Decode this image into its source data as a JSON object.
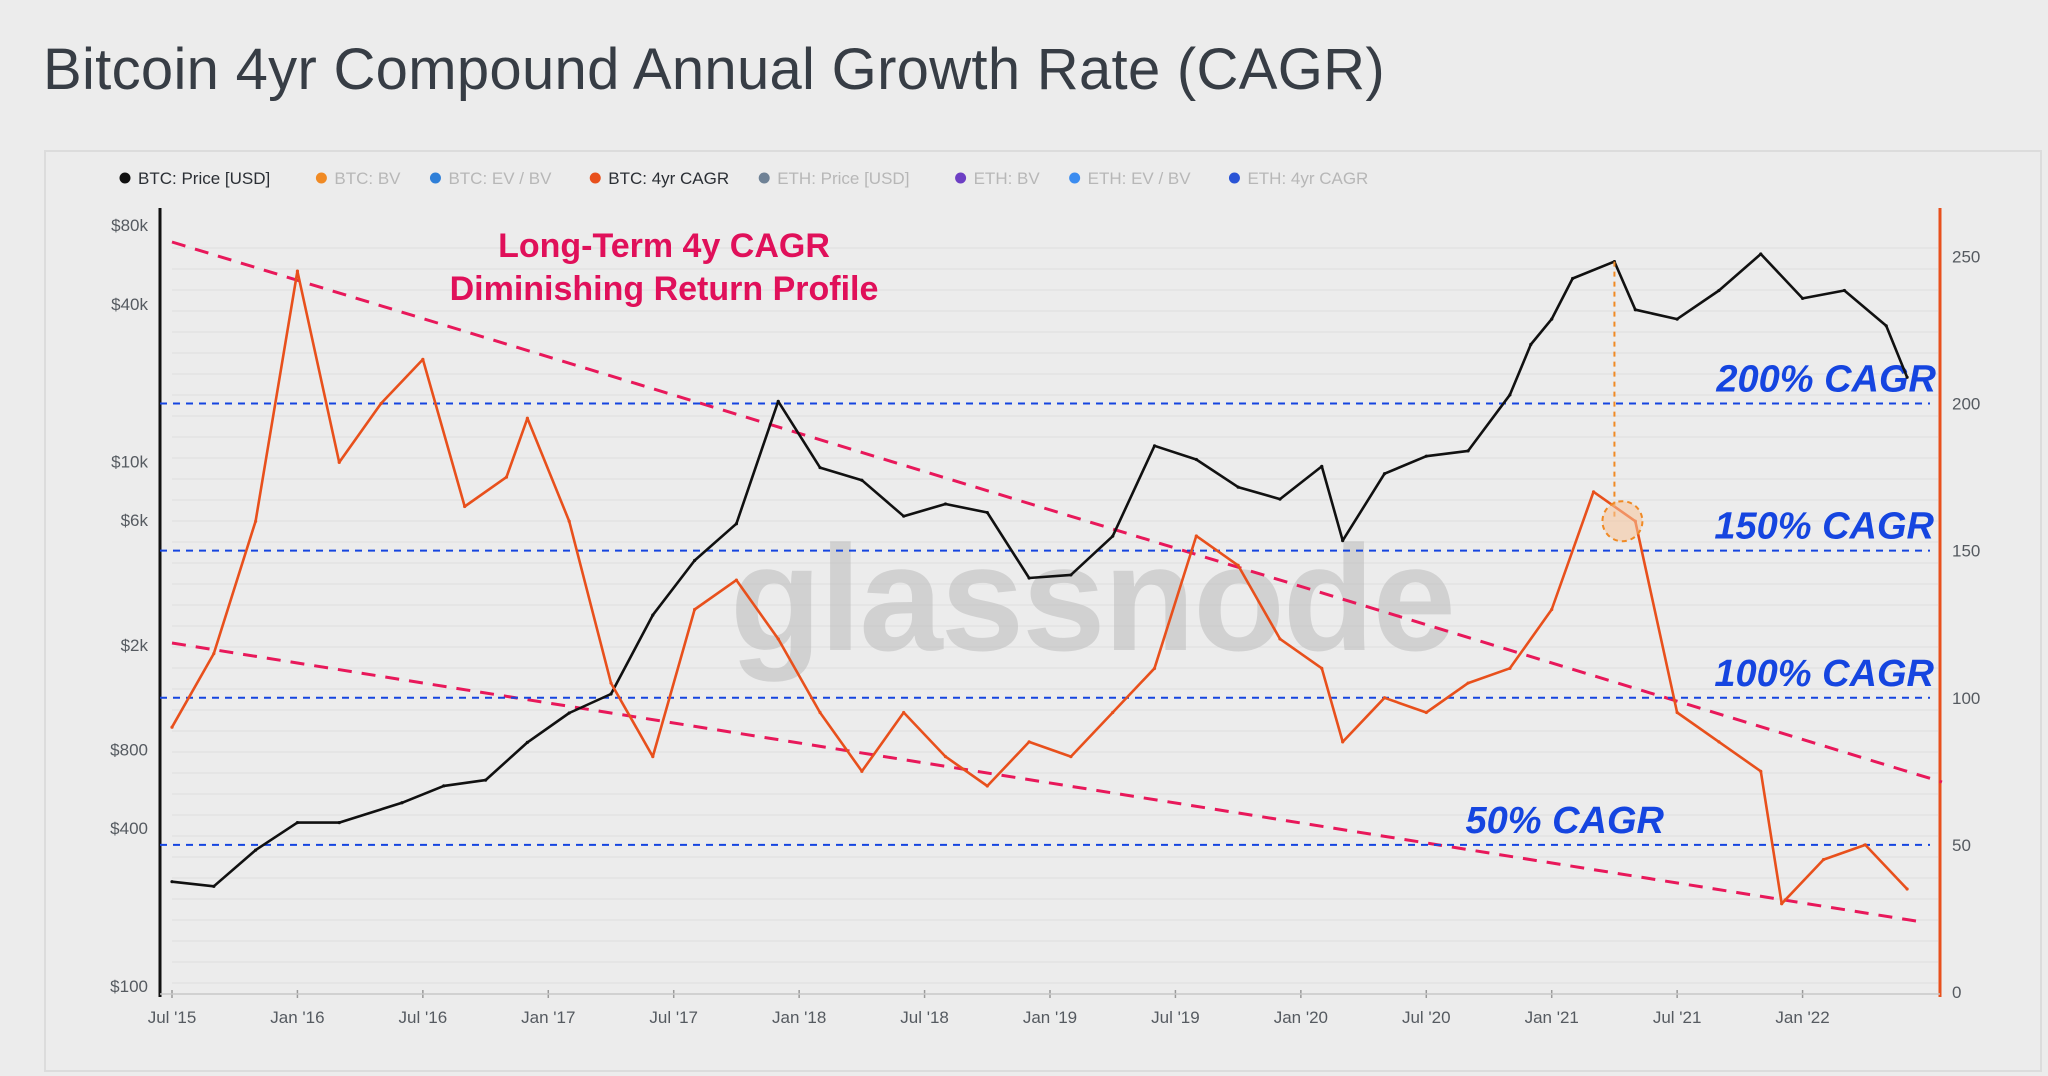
{
  "page": {
    "title": "Bitcoin 4yr Compound Annual Growth Rate (CAGR)"
  },
  "legend": [
    {
      "label": "BTC: Price [USD]",
      "color": "#111111",
      "active": true
    },
    {
      "label": "BTC: BV",
      "color": "#f08a24",
      "active": false
    },
    {
      "label": "BTC: EV / BV",
      "color": "#2f7fd8",
      "active": false
    },
    {
      "label": "BTC: 4yr CAGR",
      "color": "#e8501c",
      "active": true
    },
    {
      "label": "ETH: Price [USD]",
      "color": "#6f8296",
      "active": false
    },
    {
      "label": "ETH: BV",
      "color": "#6d3fc4",
      "active": false
    },
    {
      "label": "ETH: EV / BV",
      "color": "#3b8cf0",
      "active": false
    },
    {
      "label": "ETH: 4yr CAGR",
      "color": "#2a54d6",
      "active": false
    }
  ],
  "annotations": {
    "title_line1": "Long-Term 4y CAGR",
    "title_line2": "Diminishing Return Profile",
    "cagr_levels": [
      {
        "label": "200% CAGR",
        "value": 200
      },
      {
        "label": "150% CAGR",
        "value": 150
      },
      {
        "label": "100% CAGR",
        "value": 100
      },
      {
        "label": "50% CAGR",
        "value": 50
      }
    ],
    "trend_color": "#e8185a",
    "level_color": "#1545e0"
  },
  "watermark": "glassnode",
  "chart_data": {
    "type": "line",
    "x_tick_labels": [
      "Jul '15",
      "Jan '16",
      "Jul '16",
      "Jan '17",
      "Jul '17",
      "Jan '18",
      "Jul '18",
      "Jan '19",
      "Jul '19",
      "Jan '20",
      "Jul '20",
      "Jan '21",
      "Jul '21",
      "Jan '22"
    ],
    "left_axis": {
      "label": "",
      "scale": "log",
      "ticks": [
        "$100",
        "$400",
        "$800",
        "$2k",
        "$6k",
        "$10k",
        "$40k",
        "$80k"
      ],
      "color": "#111111"
    },
    "right_axis": {
      "label": "",
      "scale": "linear",
      "range": [
        0,
        260
      ],
      "ticks": [
        0,
        50,
        100,
        150,
        200,
        250
      ],
      "color": "#e8501c"
    },
    "x_range": [
      "2015-07",
      "2022-07"
    ],
    "series": [
      {
        "name": "BTC: Price [USD]",
        "axis": "left",
        "color": "#111111",
        "x": [
          "2015-07",
          "2015-09",
          "2015-11",
          "2016-01",
          "2016-03",
          "2016-06",
          "2016-08",
          "2016-10",
          "2016-12",
          "2017-02",
          "2017-04",
          "2017-06",
          "2017-08",
          "2017-10",
          "2017-12",
          "2018-02",
          "2018-04",
          "2018-06",
          "2018-08",
          "2018-10",
          "2018-12",
          "2019-02",
          "2019-04",
          "2019-06",
          "2019-08",
          "2019-10",
          "2019-12",
          "2020-02",
          "2020-03",
          "2020-05",
          "2020-07",
          "2020-09",
          "2020-11",
          "2020-12",
          "2021-01",
          "2021-02",
          "2021-04",
          "2021-05",
          "2021-07",
          "2021-09",
          "2021-11",
          "2022-01",
          "2022-03",
          "2022-05",
          "2022-06"
        ],
        "values": [
          250,
          240,
          330,
          420,
          420,
          500,
          580,
          610,
          850,
          1100,
          1300,
          2600,
          4200,
          5800,
          17000,
          9500,
          8500,
          6200,
          6900,
          6400,
          3600,
          3700,
          5200,
          11500,
          10200,
          8000,
          7200,
          9600,
          5000,
          9000,
          10500,
          11000,
          18000,
          28000,
          35000,
          50000,
          58000,
          38000,
          35000,
          45000,
          62000,
          42000,
          45000,
          33000,
          21000
        ]
      },
      {
        "name": "BTC: 4yr CAGR",
        "axis": "right",
        "color": "#e8501c",
        "x": [
          "2015-07",
          "2015-09",
          "2015-11",
          "2016-01",
          "2016-03",
          "2016-05",
          "2016-07",
          "2016-09",
          "2016-11",
          "2016-12",
          "2017-02",
          "2017-04",
          "2017-06",
          "2017-08",
          "2017-10",
          "2017-12",
          "2018-02",
          "2018-04",
          "2018-06",
          "2018-08",
          "2018-10",
          "2018-12",
          "2019-02",
          "2019-04",
          "2019-06",
          "2019-08",
          "2019-10",
          "2019-12",
          "2020-02",
          "2020-03",
          "2020-05",
          "2020-07",
          "2020-09",
          "2020-11",
          "2021-01",
          "2021-03",
          "2021-05",
          "2021-07",
          "2021-09",
          "2021-11",
          "2021-12",
          "2022-02",
          "2022-04",
          "2022-06"
        ],
        "values": [
          90,
          115,
          160,
          245,
          180,
          200,
          215,
          165,
          175,
          195,
          160,
          105,
          80,
          130,
          140,
          120,
          95,
          75,
          95,
          80,
          70,
          85,
          80,
          95,
          110,
          155,
          145,
          120,
          110,
          85,
          100,
          95,
          105,
          110,
          130,
          170,
          160,
          95,
          85,
          75,
          30,
          45,
          50,
          35
        ]
      }
    ]
  }
}
